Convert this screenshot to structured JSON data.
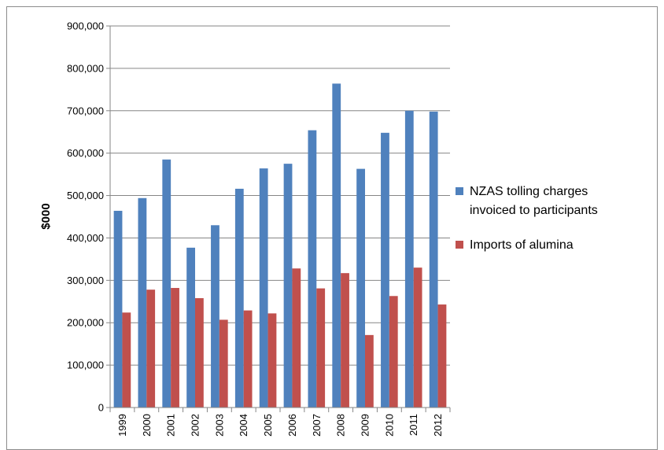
{
  "chart_data": {
    "type": "bar",
    "ylabel": "$000",
    "ylim": [
      0,
      900000
    ],
    "y_ticks": [
      "0",
      "100,000",
      "200,000",
      "300,000",
      "400,000",
      "500,000",
      "600,000",
      "700,000",
      "800,000",
      "900,000"
    ],
    "y_tick_values": [
      0,
      100000,
      200000,
      300000,
      400000,
      500000,
      600000,
      700000,
      800000,
      900000
    ],
    "grid": true,
    "legend_position": "right",
    "categories": [
      "1999",
      "2000",
      "2001",
      "2002",
      "2003",
      "2004",
      "2005",
      "2006",
      "2007",
      "2008",
      "2009",
      "2010",
      "2011",
      "2012"
    ],
    "series": [
      {
        "name": "NZAS tolling charges invoiced to participants",
        "legend_lines": [
          "NZAS tolling charges",
          "invoiced to participants"
        ],
        "color": "#4f81bd",
        "values": [
          464000,
          494000,
          585000,
          377000,
          430000,
          516000,
          564000,
          575000,
          654000,
          764000,
          563000,
          648000,
          700000,
          698000
        ]
      },
      {
        "name": "Imports of alumina",
        "legend_lines": [
          "Imports of alumina"
        ],
        "color": "#c0504d",
        "values": [
          224000,
          278000,
          282000,
          258000,
          207000,
          229000,
          222000,
          328000,
          281000,
          317000,
          171000,
          263000,
          330000,
          243000
        ]
      }
    ]
  }
}
